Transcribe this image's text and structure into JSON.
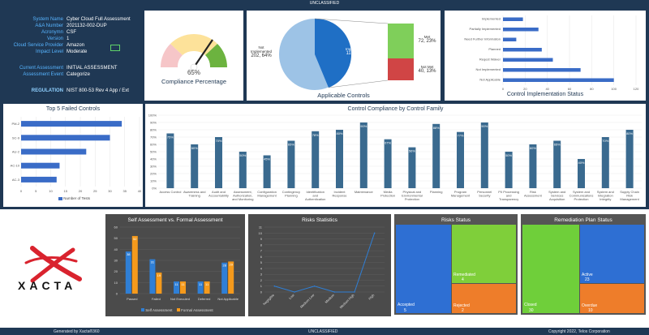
{
  "header": {
    "classification": "UNCLASSIFIED"
  },
  "footer": {
    "left": "Generated by Xacta®360",
    "center": "UNCLASSIFIED",
    "right": "Copyright 2022, Telos Corporation"
  },
  "system": {
    "fields": [
      {
        "label": "System Name",
        "value": "Cyber Cloud Full Assessment"
      },
      {
        "label": "A&A Number",
        "value": "2021132-002-DUP"
      },
      {
        "label": "Acronymn",
        "value": "CSF"
      },
      {
        "label": "Version",
        "value": "1"
      },
      {
        "label": "Cloud Service Provider",
        "value": "Amazon"
      },
      {
        "label": "Impact Level",
        "value": "Moderate"
      }
    ],
    "assessment": [
      {
        "label": "Current Assessment",
        "value": "INITIAL ASSESSMENT"
      },
      {
        "label": "Assessment Event",
        "value": "Categorize"
      }
    ],
    "regulation": {
      "label": "REGULATION",
      "value": "NIST 800-53 Rev 4 App / Ext"
    }
  },
  "compliance_gauge": {
    "value_label": "65%",
    "title": "Compliance Percentage",
    "value": 65
  },
  "applicable_controls": {
    "title": "Applicable Controls",
    "slices": [
      {
        "label": "Not Implemented",
        "value_label": "202, 64%",
        "color": "#9dc3e6"
      },
      {
        "label": "Implemented",
        "value_label": "112, 36%",
        "color": "#1f6fc5"
      }
    ],
    "breakdown": [
      {
        "label": "Met",
        "value_label": "72, 23%",
        "color": "#7fcf5a"
      },
      {
        "label": "Not Met",
        "value_label": "40, 13%",
        "color": "#d04545"
      }
    ]
  },
  "chart_data": [
    {
      "type": "bar",
      "title": "Control Implementation Status",
      "orientation": "horizontal",
      "categories": [
        "Implemented",
        "Partially Implemented",
        "Need Further Information",
        "Planned",
        "Reqest Waiver",
        "Not Implemented",
        "Not Applicable"
      ],
      "values": [
        18,
        32,
        12,
        35,
        45,
        70,
        100
      ],
      "xlim": [
        0,
        120
      ],
      "ticks": [
        "0",
        "20",
        "40",
        "60",
        "80",
        "100",
        "120"
      ]
    },
    {
      "type": "bar",
      "title": "Top  5 Failed Controls",
      "orientation": "horizontal",
      "categories": [
        "PM-2",
        "SC-9",
        "AU-2",
        "AC-10",
        "AC-3"
      ],
      "values": [
        34,
        30,
        22,
        13,
        12
      ],
      "xlim": [
        0,
        40
      ],
      "ticks": [
        "0",
        "5",
        "10",
        "15",
        "20",
        "25",
        "30",
        "35",
        "40"
      ],
      "legend": "Number of Tests"
    },
    {
      "type": "bar",
      "title": "Control Compliance by Control Family",
      "categories": [
        "Access Control",
        "Awareness and Training",
        "Audit and Accountability",
        "Assessment, Authorization, and Monitoring",
        "Configuration Management",
        "Contingency Planning",
        "Identification and Authentication",
        "Incident Response",
        "Maintenance",
        "Media Protection",
        "Physical and Environmental Protection",
        "Planning",
        "Program Management",
        "Personnel Security",
        "PII Processing and Transparency",
        "Risk Assessment",
        "System and Services Acquisition",
        "System and Communications Protection",
        "System and Integration Integrity",
        "Supply Chain Risk Management"
      ],
      "values": [
        75,
        60,
        70,
        50,
        45,
        65,
        78,
        80,
        90,
        67,
        56,
        88,
        77,
        90,
        50,
        60,
        65,
        40,
        70,
        80
      ],
      "value_labels": [
        "75%",
        "60%",
        "70%",
        "50%",
        "45%",
        "65%",
        "78%",
        "80%",
        "90%",
        "67%",
        "56%",
        "88%",
        "77%",
        "90%",
        "50%",
        "60%",
        "65%",
        "40%",
        "70%",
        "80%"
      ],
      "ylim": [
        0,
        100
      ],
      "ticks": [
        "0%",
        "10%",
        "20%",
        "30%",
        "40%",
        "50%",
        "60%",
        "70%",
        "80%",
        "90%",
        "100%"
      ]
    },
    {
      "type": "bar",
      "title": "Self Assessment vs. Formal Assessment",
      "categories": [
        "Passed",
        "Failed",
        "Not Executed",
        "Deferred",
        "Not Applicable"
      ],
      "series": [
        {
          "name": "Self Assessment",
          "values": [
            38,
            31,
            11,
            11,
            28
          ],
          "color": "#2f7fd6"
        },
        {
          "name": "Formal Assessment",
          "values": [
            52,
            19,
            11,
            11,
            29
          ],
          "color": "#f59a1c"
        }
      ],
      "ylim": [
        0,
        60
      ],
      "ticks": [
        "0",
        "10",
        "20",
        "30",
        "40",
        "50",
        "60"
      ]
    },
    {
      "type": "line",
      "title": "Risks Statistics",
      "categories": [
        "Negligible",
        "Low",
        "Medium Low",
        "Medium",
        "Medium High",
        "High"
      ],
      "values": [
        1,
        0,
        1,
        0,
        0,
        10
      ],
      "ylim": [
        0,
        11
      ],
      "ticks": [
        "0",
        "1",
        "2",
        "3",
        "4",
        "5",
        "6",
        "7",
        "8",
        "9",
        "10",
        "11"
      ]
    }
  ],
  "risks_status": {
    "title": "Risks Status",
    "tiles": [
      {
        "label": "Accepted",
        "value": "5",
        "color": "#2e6fd3"
      },
      {
        "label": "Remediated",
        "value": "4",
        "color": "#7fcf3a"
      },
      {
        "label": "Rejected",
        "value": "2",
        "color": "#ee7d2a"
      }
    ]
  },
  "remediation_status": {
    "title": "Remediation Plan Status",
    "tiles": [
      {
        "label": "Closed",
        "value": "30",
        "color": "#6fcf3a"
      },
      {
        "label": "Active",
        "value": "23",
        "color": "#2e6fd3"
      },
      {
        "label": "Overdue",
        "value": "10",
        "color": "#ee7d2a"
      }
    ]
  },
  "logo": {
    "text": "XACTA"
  }
}
